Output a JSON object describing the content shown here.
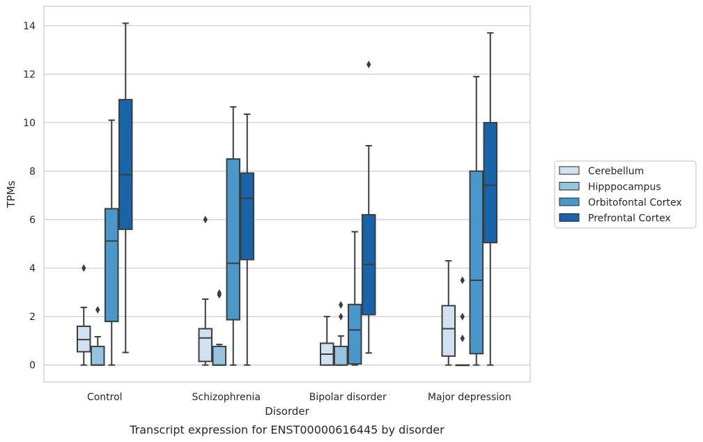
{
  "chart_data": {
    "type": "boxplot",
    "caption": "Transcript expression for ENST00000616445 by disorder",
    "xlabel": "Disorder",
    "ylabel": "TPMs",
    "ylim": [
      -0.7,
      14.8
    ],
    "yticks": [
      0,
      2,
      4,
      6,
      8,
      10,
      12,
      14
    ],
    "grid": "horizontal",
    "legend_position": "right",
    "categories": [
      "Control",
      "Schizophrenia",
      "Bipolar disorder",
      "Major depression"
    ],
    "series": [
      {
        "name": "Cerebellum",
        "color": "#d0e1f2",
        "boxes": [
          {
            "whisker_low": 0.0,
            "q1": 0.55,
            "median": 1.05,
            "q3": 1.6,
            "whisker_high": 2.38,
            "outliers": [
              4.0
            ]
          },
          {
            "whisker_low": 0.0,
            "q1": 0.15,
            "median": 1.12,
            "q3": 1.5,
            "whisker_high": 2.72,
            "outliers": [
              6.0
            ]
          },
          {
            "whisker_low": 0.0,
            "q1": 0.0,
            "median": 0.45,
            "q3": 0.9,
            "whisker_high": 2.0,
            "outliers": []
          },
          {
            "whisker_low": 0.0,
            "q1": 0.37,
            "median": 1.5,
            "q3": 2.45,
            "whisker_high": 4.3,
            "outliers": []
          }
        ]
      },
      {
        "name": "Hipppocampus",
        "color": "#94c4df",
        "boxes": [
          {
            "whisker_low": 0.0,
            "q1": 0.0,
            "median": 0.0,
            "q3": 0.77,
            "whisker_high": 1.17,
            "outliers": [
              2.28
            ]
          },
          {
            "whisker_low": 0.0,
            "q1": 0.0,
            "median": 0.0,
            "q3": 0.77,
            "whisker_high": 0.85,
            "outliers": [
              2.9,
              2.97
            ]
          },
          {
            "whisker_low": 0.0,
            "q1": 0.0,
            "median": 0.0,
            "q3": 0.77,
            "whisker_high": 1.2,
            "outliers": [
              2.0,
              2.48
            ]
          },
          {
            "whisker_low": 0.0,
            "q1": 0.0,
            "median": 0.0,
            "q3": 0.0,
            "whisker_high": 0.0,
            "outliers": [
              1.1,
              2.0,
              3.5
            ]
          }
        ]
      },
      {
        "name": "Orbitofontal Cortex",
        "color": "#4a98c9",
        "boxes": [
          {
            "whisker_low": 0.0,
            "q1": 1.8,
            "median": 5.12,
            "q3": 6.45,
            "whisker_high": 10.1,
            "outliers": []
          },
          {
            "whisker_low": 0.0,
            "q1": 1.87,
            "median": 4.2,
            "q3": 8.5,
            "whisker_high": 10.65,
            "outliers": []
          },
          {
            "whisker_low": 0.0,
            "q1": 0.05,
            "median": 1.45,
            "q3": 2.5,
            "whisker_high": 5.5,
            "outliers": []
          },
          {
            "whisker_low": 0.0,
            "q1": 0.47,
            "median": 3.5,
            "q3": 8.0,
            "whisker_high": 11.9,
            "outliers": []
          }
        ]
      },
      {
        "name": "Prefrontal Cortex",
        "color": "#1764ab",
        "boxes": [
          {
            "whisker_low": 0.52,
            "q1": 5.6,
            "median": 7.85,
            "q3": 10.95,
            "whisker_high": 14.1,
            "outliers": []
          },
          {
            "whisker_low": 0.0,
            "q1": 4.35,
            "median": 6.88,
            "q3": 7.92,
            "whisker_high": 10.35,
            "outliers": []
          },
          {
            "whisker_low": 0.5,
            "q1": 2.08,
            "median": 4.15,
            "q3": 6.2,
            "whisker_high": 9.05,
            "outliers": [
              12.4
            ]
          },
          {
            "whisker_low": 0.0,
            "q1": 5.05,
            "median": 7.42,
            "q3": 10.0,
            "whisker_high": 13.7,
            "outliers": []
          }
        ]
      }
    ]
  }
}
